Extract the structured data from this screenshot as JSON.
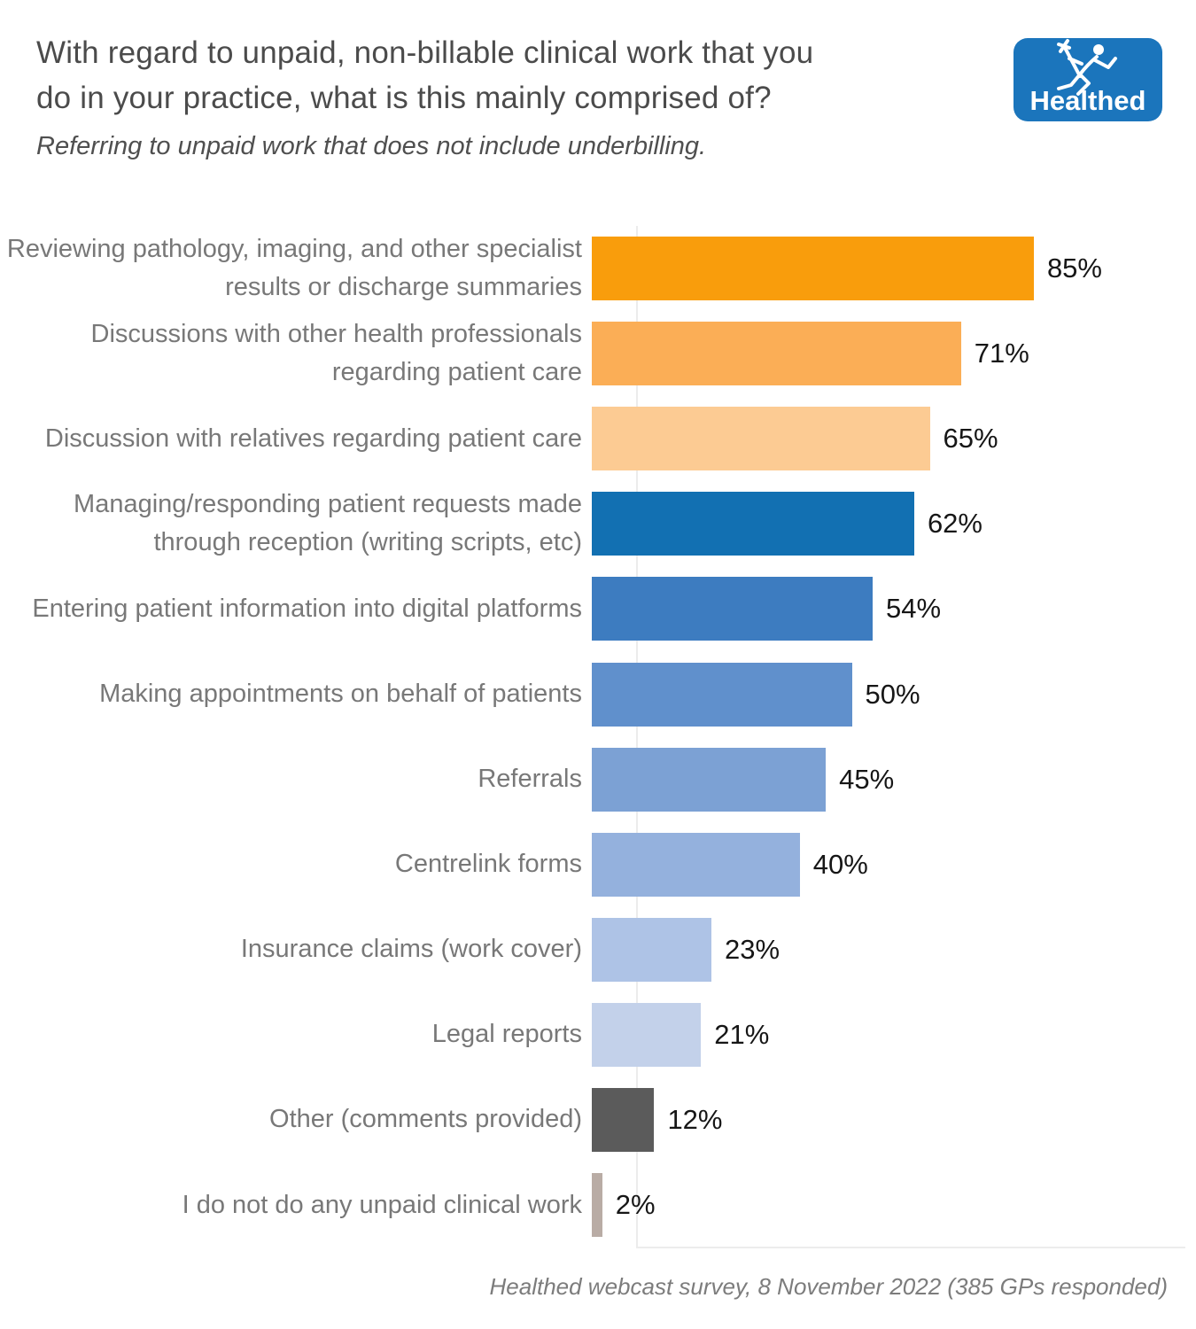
{
  "header": {
    "title_line1": "With regard to unpaid, non-billable clinical work that you",
    "title_line2": "do in your practice, what is this mainly comprised of?",
    "subtitle": "Referring to unpaid work that does not include underbilling.",
    "logo_text": "Healthed",
    "logo_bg_color": "#1b75bc"
  },
  "chart_data": {
    "type": "bar",
    "orientation": "horizontal",
    "title": "With regard to unpaid, non-billable clinical work that you do in your practice, what is this mainly comprised of?",
    "subtitle": "Referring to unpaid work that does not include underbilling.",
    "categories": [
      "Reviewing pathology, imaging, and other specialist results or discharge summaries",
      "Discussions with other health professionals regarding patient care",
      "Discussion with relatives regarding patient care",
      "Managing/responding patient requests made through reception (writing scripts, etc)",
      "Entering patient information into digital platforms",
      "Making appointments on behalf of patients",
      "Referrals",
      "Centrelink forms",
      "Insurance claims (work cover)",
      "Legal reports",
      "Other (comments provided)",
      "I do not do any unpaid clinical work"
    ],
    "values": [
      85,
      71,
      65,
      62,
      54,
      50,
      45,
      40,
      23,
      21,
      12,
      2
    ],
    "value_labels": [
      "85%",
      "71%",
      "65%",
      "62%",
      "54%",
      "50%",
      "45%",
      "40%",
      "23%",
      "21%",
      "12%",
      "2%"
    ],
    "unit": "%",
    "bar_colors": [
      "#f99d0c",
      "#fbae56",
      "#fccb93",
      "#1270b2",
      "#3d7cc0",
      "#6090cc",
      "#7ca1d4",
      "#94b1dd",
      "#aec3e6",
      "#c3d1ea",
      "#5b5b5b",
      "#b9aca5"
    ],
    "xlim": [
      0,
      100
    ],
    "grid": false,
    "legend": "none",
    "value_label_color": "#161616",
    "category_label_color": "#787878"
  },
  "footer": {
    "source": "Healthed webcast survey, 8 November 2022 (385 GPs responded)"
  }
}
